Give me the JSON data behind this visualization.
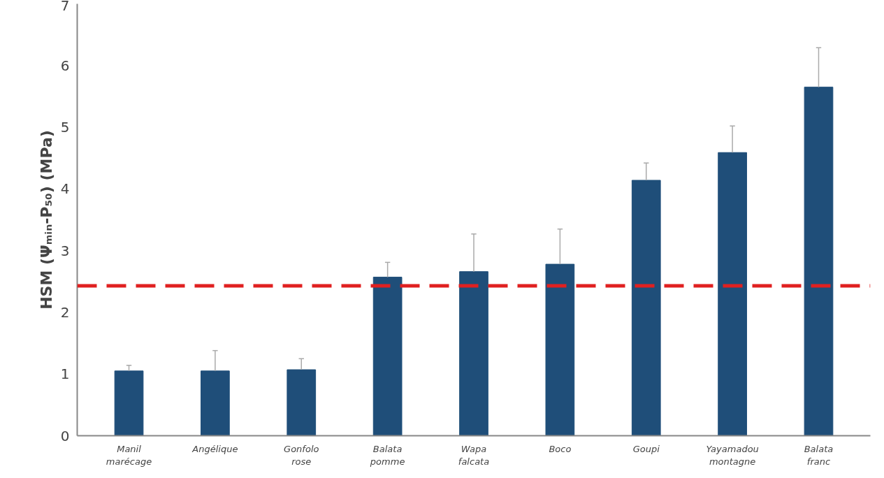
{
  "chart_data": {
    "type": "bar",
    "ylabel": "HSM (Ψₘᵢₙ-P₅₀) (MPa)",
    "categories": [
      "Manil marécage",
      "Angélique",
      "Gonfolo rose",
      "Balata pomme",
      "Wapa falcata",
      "Boco",
      "Goupi",
      "Yayamadou montagne",
      "Balata franc"
    ],
    "values": [
      1.05,
      1.05,
      1.07,
      2.57,
      2.66,
      2.78,
      4.14,
      4.59,
      5.65
    ],
    "errors": [
      [
        1.05,
        1.14
      ],
      [
        1.05,
        1.38
      ],
      [
        1.07,
        1.25
      ],
      [
        2.57,
        2.81
      ],
      [
        2.66,
        3.27
      ],
      [
        2.78,
        3.35
      ],
      [
        4.14,
        4.42
      ],
      [
        4.59,
        5.02
      ],
      [
        5.65,
        6.29
      ]
    ],
    "color": "#1f4e79",
    "ylim": [
      0,
      7
    ],
    "yticks": [
      0,
      1,
      2,
      3,
      4,
      5,
      6,
      7
    ],
    "ref_lines": [
      {
        "axis": "y",
        "value": 2.43,
        "color": "#e02020",
        "line_style": "dashed"
      }
    ],
    "grid": false
  }
}
